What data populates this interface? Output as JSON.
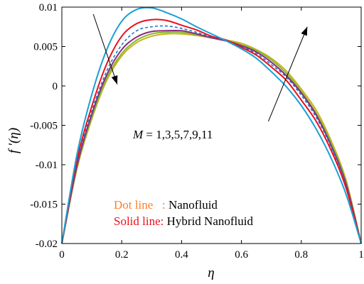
{
  "chart_data": {
    "type": "line",
    "xlabel": "η",
    "ylabel": "f ′(η)",
    "xlim": [
      0,
      1
    ],
    "ylim": [
      -0.02,
      0.01
    ],
    "xticks": [
      0,
      0.2,
      0.4,
      0.6,
      0.8,
      1
    ],
    "xtick_labels": [
      "0",
      "0.2",
      "0.4",
      "0.6",
      "0.8",
      "1"
    ],
    "yticks": [
      -0.02,
      -0.015,
      -0.01,
      -0.005,
      0,
      0.005,
      0.01
    ],
    "ytick_labels": [
      "-0.02",
      "-0.015",
      "-0.01",
      "-0.005",
      "0",
      "0.005",
      "0.01"
    ],
    "grid": false,
    "annotation_parameter": {
      "symbol": "M",
      "values_text": " = 1,3,5,7,9,11"
    },
    "legend_note": {
      "dot_label": "Dot line",
      "dot_sep": "   : ",
      "dot_desc": "Nanofluid",
      "dot_color": "#ff7f27",
      "solid_label": "Solid line",
      "solid_sep": ": ",
      "solid_desc": "Hybrid Nanofluid",
      "solid_color": "#e8101c"
    },
    "x": [
      0,
      0.05,
      0.1,
      0.15,
      0.2,
      0.25,
      0.3,
      0.35,
      0.4,
      0.45,
      0.5,
      0.55,
      0.6,
      0.65,
      0.7,
      0.75,
      0.8,
      0.85,
      0.9,
      0.95,
      1
    ],
    "series": [
      {
        "color": "#1aa0d8",
        "style": "solid",
        "values": [
          -0.02,
          -0.0088,
          -0.0011,
          0.0046,
          0.0082,
          0.0097,
          0.0099,
          0.0093,
          0.0085,
          0.0075,
          0.0066,
          0.0057,
          0.0047,
          0.0035,
          0.0018,
          -0.0001,
          -0.0025,
          -0.0055,
          -0.0092,
          -0.0138,
          -0.02
        ]
      },
      {
        "color": "#e8c020",
        "style": "dashed",
        "values": [
          -0.02,
          -0.0088,
          -0.0011,
          0.0046,
          0.0082,
          0.0097,
          0.0099,
          0.0093,
          0.0085,
          0.0075,
          0.0066,
          0.0057,
          0.0047,
          0.0035,
          0.0018,
          -0.0001,
          -0.0025,
          -0.0055,
          -0.0092,
          -0.0138,
          -0.02
        ]
      },
      {
        "color": "#e8101c",
        "style": "solid",
        "values": [
          -0.02,
          -0.0095,
          -0.0026,
          0.0028,
          0.0063,
          0.0079,
          0.0084,
          0.0083,
          0.0077,
          0.0071,
          0.0063,
          0.0058,
          0.0049,
          0.0039,
          0.0024,
          0.0007,
          -0.0018,
          -0.0045,
          -0.0082,
          -0.013,
          -0.02
        ]
      },
      {
        "color": "#1a7ac8",
        "style": "dashed",
        "values": [
          -0.02,
          -0.0099,
          -0.0032,
          0.0019,
          0.0052,
          0.007,
          0.0075,
          0.0076,
          0.0073,
          0.0068,
          0.0062,
          0.0057,
          0.005,
          0.0041,
          0.0027,
          0.0011,
          -0.0012,
          -0.004,
          -0.0078,
          -0.0127,
          -0.02
        ]
      },
      {
        "color": "#8a2a80",
        "style": "solid",
        "values": [
          -0.02,
          -0.0102,
          -0.0036,
          0.0014,
          0.0046,
          0.0062,
          0.0069,
          0.007,
          0.007,
          0.0066,
          0.0061,
          0.0057,
          0.0051,
          0.0043,
          0.003,
          0.0013,
          -0.0009,
          -0.0037,
          -0.0076,
          -0.0125,
          -0.02
        ]
      },
      {
        "color": "#88b830",
        "style": "solid",
        "values": [
          -0.02,
          -0.0104,
          -0.004,
          0.001,
          0.0041,
          0.0058,
          0.0066,
          0.0068,
          0.0068,
          0.0065,
          0.0061,
          0.0058,
          0.0052,
          0.0045,
          0.0033,
          0.0016,
          -0.0007,
          -0.0035,
          -0.0073,
          -0.0123,
          -0.02
        ]
      },
      {
        "color": "#c8b420",
        "style": "solid",
        "values": [
          -0.02,
          -0.0106,
          -0.0042,
          0.0007,
          0.0038,
          0.0055,
          0.0063,
          0.0066,
          0.0066,
          0.0064,
          0.0061,
          0.0058,
          0.0054,
          0.0046,
          0.0035,
          0.0019,
          -0.0004,
          -0.0031,
          -0.007,
          -0.012,
          -0.02
        ]
      }
    ],
    "arrows": [
      {
        "from": [
          0.105,
          0.0091
        ],
        "to": [
          0.185,
          0.0002
        ]
      },
      {
        "from": [
          0.69,
          -0.0045
        ],
        "to": [
          0.82,
          0.0075
        ]
      }
    ],
    "arrow_color": "#000000"
  }
}
